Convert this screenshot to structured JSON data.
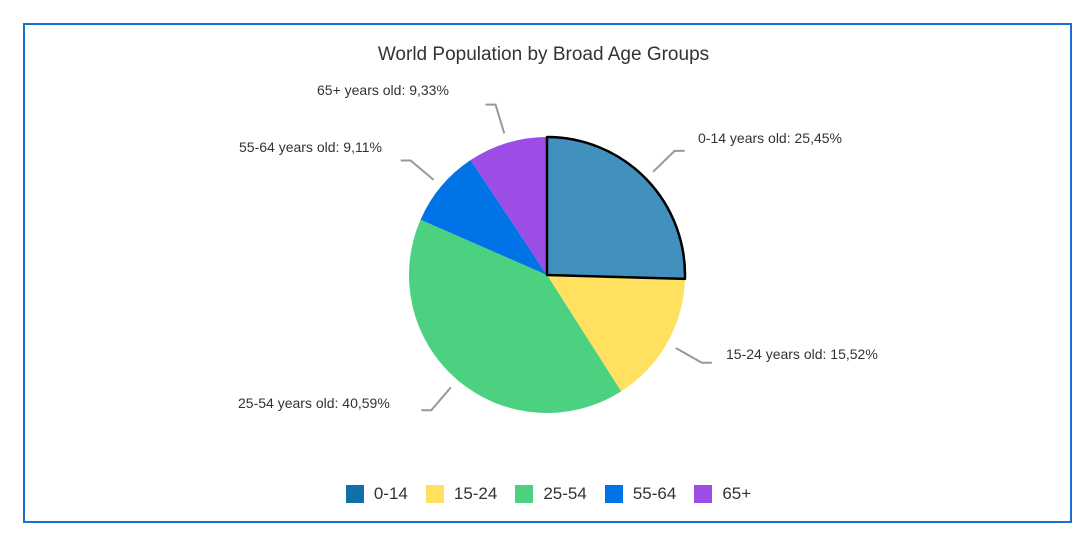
{
  "chart_data": {
    "type": "pie",
    "title": "World Population by Broad Age Groups",
    "categories": [
      "0-14",
      "15-24",
      "25-54",
      "55-64",
      "65+"
    ],
    "values": [
      25.45,
      15.52,
      40.59,
      9.11,
      9.33
    ],
    "labels": [
      "0-14 years old: 25,45%",
      "15-24 years old: 15,52%",
      "25-54 years old: 40,59%",
      "55-64 years old: 9,11%",
      "65+ years old: 9,33%"
    ],
    "colors": [
      "#1170aa",
      "#ffe05f",
      "#4bd180",
      "#0073e6",
      "#9b4de6"
    ],
    "highlight_color": "#4290be",
    "highlighted_index": 0,
    "legend_position": "bottom"
  }
}
